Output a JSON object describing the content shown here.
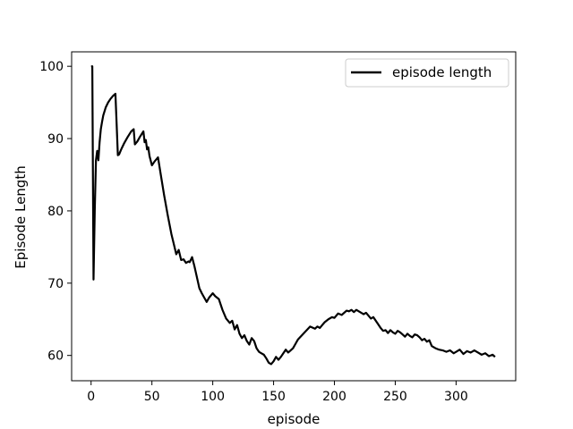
{
  "chart_data": {
    "type": "line",
    "title": "",
    "xlabel": "episode",
    "ylabel": "Episode Length",
    "xlim": [
      -16,
      349
    ],
    "ylim": [
      56.5,
      102
    ],
    "xticks": [
      0,
      50,
      100,
      150,
      200,
      250,
      300
    ],
    "yticks": [
      60,
      70,
      80,
      90,
      100
    ],
    "grid": false,
    "legend": {
      "placement": "top-right",
      "entries": [
        "episode length"
      ]
    },
    "series": [
      {
        "name": "episode length",
        "color": "#000000",
        "x": [
          0,
          1,
          2,
          3,
          4,
          5,
          6,
          7,
          8,
          9,
          10,
          12,
          14,
          16,
          18,
          20,
          21,
          22,
          23,
          25,
          27,
          30,
          33,
          35,
          36,
          38,
          40,
          43,
          44,
          45,
          46,
          47,
          48,
          50,
          52,
          55,
          57,
          60,
          63,
          66,
          68,
          70,
          72,
          74,
          76,
          78,
          80,
          81,
          83,
          85,
          87,
          89,
          91,
          93,
          95,
          97,
          100,
          102,
          105,
          108,
          111,
          114,
          116,
          118,
          120,
          122,
          124,
          126,
          128,
          130,
          132,
          134,
          136,
          138,
          140,
          142,
          144,
          146,
          148,
          150,
          152,
          154,
          156,
          158,
          160,
          162,
          164,
          166,
          168,
          170,
          175,
          180,
          184,
          186,
          188,
          190,
          192,
          195,
          198,
          200,
          203,
          206,
          210,
          212,
          214,
          216,
          218,
          220,
          222,
          224,
          226,
          228,
          230,
          232,
          234,
          236,
          238,
          240,
          242,
          244,
          246,
          248,
          250,
          252,
          254,
          256,
          258,
          260,
          262,
          264,
          266,
          268,
          270,
          272,
          274,
          276,
          278,
          280,
          283,
          286,
          289,
          292,
          295,
          298,
          300,
          303,
          306,
          309,
          312,
          315,
          318,
          321,
          324,
          327,
          330,
          332
        ],
        "values": [
          100,
          100,
          70.5,
          80,
          87,
          88.3,
          87,
          89.5,
          91.3,
          92.3,
          93.2,
          94.3,
          95,
          95.5,
          95.9,
          96.2,
          92,
          87.7,
          87.8,
          88.6,
          89.3,
          90.2,
          91,
          91.3,
          89.2,
          89.6,
          90.2,
          91,
          89.5,
          89.8,
          88.5,
          88.8,
          87.6,
          86.3,
          86.8,
          87.4,
          85.3,
          82.2,
          79.4,
          76.8,
          75.4,
          74,
          74.6,
          73.2,
          73.3,
          72.8,
          73,
          72.9,
          73.6,
          72.3,
          70.8,
          69.3,
          68.6,
          68,
          67.4,
          68,
          68.6,
          68.2,
          67.8,
          66.3,
          65.1,
          64.5,
          64.8,
          63.6,
          64.2,
          63,
          62.4,
          62.8,
          62,
          61.5,
          62.4,
          62,
          61,
          60.5,
          60.3,
          60.1,
          59.6,
          59,
          58.8,
          59.2,
          59.8,
          59.4,
          59.8,
          60.3,
          60.8,
          60.4,
          60.7,
          61,
          61.6,
          62.2,
          63.1,
          64,
          63.7,
          64,
          63.8,
          64.2,
          64.6,
          65,
          65.3,
          65.2,
          65.8,
          65.6,
          66.2,
          66.1,
          66.3,
          66,
          66.3,
          66.1,
          65.9,
          65.7,
          65.9,
          65.5,
          65.1,
          65.3,
          64.8,
          64.3,
          63.8,
          63.4,
          63.5,
          63.1,
          63.5,
          63.2,
          63,
          63.4,
          63.2,
          62.9,
          62.6,
          63,
          62.7,
          62.5,
          62.9,
          62.8,
          62.5,
          62.1,
          62.3,
          61.9,
          62.1,
          61.3,
          61,
          60.8,
          60.7,
          60.5,
          60.7,
          60.3,
          60.5,
          60.8,
          60.2,
          60.6,
          60.4,
          60.7,
          60.4,
          60.1,
          60.3,
          59.9,
          60.1,
          59.8
        ]
      }
    ]
  }
}
